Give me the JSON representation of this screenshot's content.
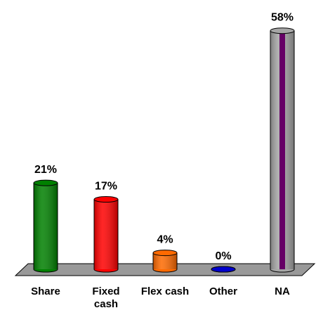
{
  "chart_data": {
    "type": "bar",
    "categories": [
      "Share",
      "Fixed cash",
      "Flex cash",
      "Other",
      "NA"
    ],
    "values": [
      21,
      17,
      4,
      0,
      58
    ],
    "value_labels": [
      "21%",
      "17%",
      "4%",
      "0%",
      "58%"
    ],
    "colors": [
      "#008000",
      "#ff0000",
      "#ff6a00",
      "#0000cc",
      "#a6a6a6"
    ],
    "ylim": [
      0,
      60
    ]
  }
}
